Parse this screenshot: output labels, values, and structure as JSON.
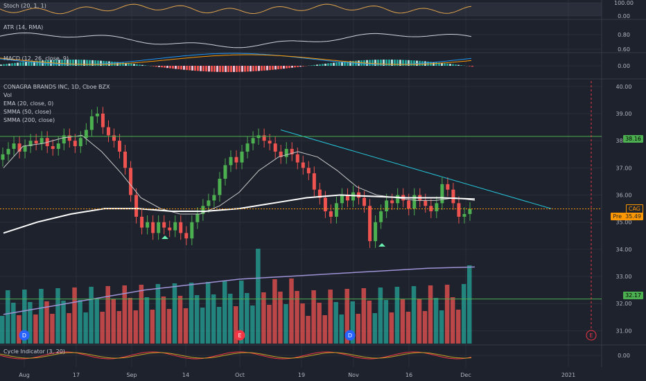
{
  "panes": {
    "stoch_label": "Stoch (20, 1, 1)",
    "atr_label": "ATR (14, RMA)",
    "macd_label": "MACD (12, 26, close, 9)",
    "cycle_label": "Cycle Indicator (3, 20)"
  },
  "legend": {
    "symbol": "CONAGRA BRANDS INC, 1D, Cboe BZX",
    "vol": "Vol",
    "ema": "EMA (20, close, 0)",
    "smma50": "SMMA (50, close)",
    "smma200": "SMMA (200, close)"
  },
  "price_tags": {
    "top_line": "38.16",
    "bottom_line": "32.17",
    "symbol": "CAG",
    "prev_label": "Pre",
    "prev_value": "35.49"
  },
  "colors": {
    "background": "#1e222d",
    "up": "#26a69a",
    "up_candle": "#4caf50",
    "down": "#ef5350",
    "ema": "#c8c8c8",
    "smma50": "#ffffff",
    "smma200": "#9e93d6",
    "trendline": "#26c6da",
    "horizontal_line": "#4caf50",
    "prev_close": "#ff9800",
    "event_dividend": "#2962ff",
    "event_earnings": "#f23645"
  },
  "event_markers": [
    "D",
    "E",
    "D",
    "E"
  ],
  "chart_data": [
    {
      "type": "line",
      "title": "Stoch (20, 1, 1)",
      "y_ticks": [
        "100.00",
        "0.00"
      ]
    },
    {
      "type": "line",
      "title": "ATR (14, RMA)",
      "y_ticks": [
        "0.80",
        "0.60"
      ]
    },
    {
      "type": "bar",
      "title": "MACD (12, 26, close, 9)",
      "y_ticks": [
        "0.00"
      ]
    },
    {
      "type": "line",
      "title": "CONAGRA BRANDS INC, 1D, Cboe BZX",
      "y_ticks": [
        "40.00",
        "39.00",
        "38.00",
        "37.00",
        "36.00",
        "35.00",
        "34.00",
        "33.00",
        "32.00",
        "31.00"
      ],
      "ylim": [
        30.5,
        40.2
      ],
      "x_ticks": [
        "Aug",
        "17",
        "Sep",
        "14",
        "Oct",
        "19",
        "Nov",
        "16",
        "Dec",
        "2021"
      ],
      "close_series_approx": [
        37.5,
        37.7,
        37.9,
        37.6,
        37.8,
        38.0,
        37.9,
        38.1,
        37.8,
        37.7,
        37.9,
        38.2,
        38.0,
        37.8,
        38.1,
        38.4,
        38.9,
        39.0,
        38.5,
        38.2,
        38.0,
        37.6,
        37.0,
        36.0,
        35.2,
        34.8,
        35.0,
        34.6,
        35.0,
        34.8,
        34.7,
        35.0,
        34.6,
        34.4,
        35.0,
        35.3,
        35.6,
        35.8,
        36.0,
        36.6,
        37.1,
        37.4,
        37.2,
        37.6,
        37.9,
        38.1,
        38.2,
        38.0,
        37.9,
        37.6,
        37.4,
        37.7,
        37.5,
        37.2,
        37.0,
        36.8,
        36.2,
        35.9,
        35.4,
        35.2,
        35.7,
        36.0,
        35.8,
        36.1,
        35.9,
        35.6,
        34.3,
        35.0,
        35.4,
        35.8,
        35.7,
        36.0,
        35.8,
        35.5,
        36.0,
        35.8,
        35.6,
        35.4,
        35.7,
        36.4,
        36.2,
        35.7,
        35.2,
        35.3,
        35.49
      ],
      "ema20": [
        37.0,
        37.8,
        37.9,
        38.1,
        38.2,
        37.6,
        36.8,
        35.9,
        35.5,
        35.3,
        35.3,
        35.6,
        36.1,
        36.9,
        37.4,
        37.6,
        37.4,
        36.9,
        36.3,
        36.0,
        35.9,
        35.8,
        35.8,
        35.9,
        35.8
      ],
      "smma50": [
        34.6,
        35.0,
        35.3,
        35.5,
        35.5,
        35.4,
        35.4,
        35.5,
        35.7,
        35.9,
        36.0,
        35.95,
        35.9,
        35.9,
        35.85
      ],
      "smma200": [
        31.6,
        31.9,
        32.2,
        32.5,
        32.7,
        32.9,
        33.0,
        33.1,
        33.2,
        33.3,
        33.35
      ],
      "horizontal_levels": [
        38.16,
        32.17
      ],
      "prev_close": 35.49,
      "trendline": {
        "from": [
          "Oct 13",
          38.4
        ],
        "to": [
          "Dec 21",
          35.5
        ]
      },
      "grid": true,
      "legend_position": "top-left"
    },
    {
      "type": "line",
      "title": "Cycle Indicator (3, 20)",
      "y_ticks": [
        "0.00"
      ]
    }
  ]
}
